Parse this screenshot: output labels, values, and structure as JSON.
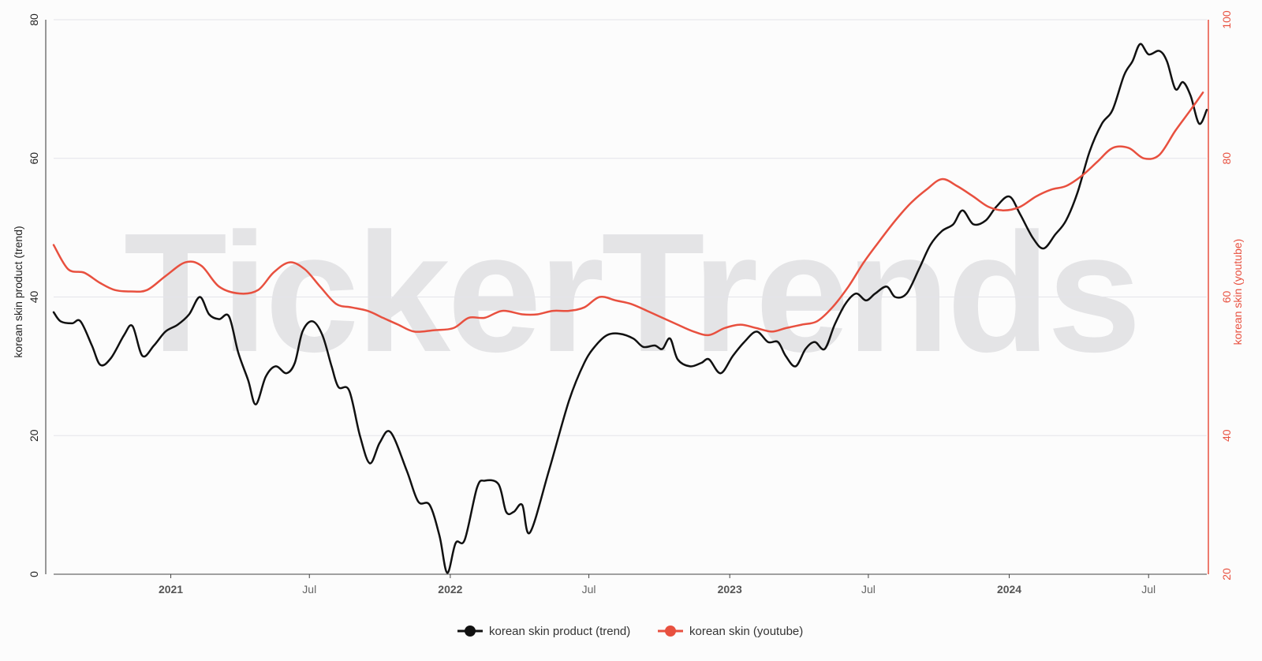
{
  "watermark": "TickerTrends",
  "colors": {
    "trend": "#111111",
    "youtube": "#e8503f",
    "grid": "#e4e4ea"
  },
  "chart_data": {
    "type": "line",
    "title": "",
    "x_type": "date",
    "xlim": [
      "2020-08-01",
      "2024-09-15"
    ],
    "x_ticks": [
      {
        "date": "2021-01-01",
        "label": "2021",
        "bold": true
      },
      {
        "date": "2021-07-01",
        "label": "Jul",
        "bold": false
      },
      {
        "date": "2022-01-01",
        "label": "2022",
        "bold": true
      },
      {
        "date": "2022-07-01",
        "label": "Jul",
        "bold": false
      },
      {
        "date": "2023-01-01",
        "label": "2023",
        "bold": true
      },
      {
        "date": "2023-07-01",
        "label": "Jul",
        "bold": false
      },
      {
        "date": "2024-01-01",
        "label": "2024",
        "bold": true
      },
      {
        "date": "2024-07-01",
        "label": "Jul",
        "bold": false
      }
    ],
    "y_left": {
      "label": "korean skin product  (trend)",
      "ylim": [
        0,
        80
      ],
      "ticks": [
        "0",
        "20",
        "40",
        "60",
        "80"
      ]
    },
    "y_right": {
      "label": "korean skin  (youtube)",
      "ylim": [
        20,
        100
      ],
      "ticks": [
        "20",
        "40",
        "60",
        "80",
        "100"
      ]
    },
    "grid": true,
    "legend_position": "bottom-center",
    "series": [
      {
        "name": "korean skin product  (trend)",
        "axis": "left",
        "color": "#111111",
        "points": [
          [
            "2020-08-01",
            37.8
          ],
          [
            "2020-08-10",
            36.5
          ],
          [
            "2020-08-25",
            36.2
          ],
          [
            "2020-09-05",
            36.5
          ],
          [
            "2020-09-20",
            33.0
          ],
          [
            "2020-10-01",
            30.2
          ],
          [
            "2020-10-15",
            31.2
          ],
          [
            "2020-11-01",
            34.5
          ],
          [
            "2020-11-12",
            35.8
          ],
          [
            "2020-11-25",
            31.5
          ],
          [
            "2020-12-10",
            33.0
          ],
          [
            "2020-12-25",
            35.0
          ],
          [
            "2021-01-10",
            36.0
          ],
          [
            "2021-01-25",
            37.5
          ],
          [
            "2021-02-08",
            40.0
          ],
          [
            "2021-02-20",
            37.5
          ],
          [
            "2021-03-05",
            36.8
          ],
          [
            "2021-03-18",
            37.2
          ],
          [
            "2021-03-30",
            32.0
          ],
          [
            "2021-04-12",
            28.0
          ],
          [
            "2021-04-22",
            24.5
          ],
          [
            "2021-05-05",
            28.5
          ],
          [
            "2021-05-18",
            30.0
          ],
          [
            "2021-06-01",
            29.0
          ],
          [
            "2021-06-12",
            30.5
          ],
          [
            "2021-06-22",
            35.0
          ],
          [
            "2021-07-05",
            36.5
          ],
          [
            "2021-07-18",
            34.5
          ],
          [
            "2021-07-30",
            30.0
          ],
          [
            "2021-08-08",
            27.0
          ],
          [
            "2021-08-22",
            26.5
          ],
          [
            "2021-09-05",
            20.0
          ],
          [
            "2021-09-18",
            16.0
          ],
          [
            "2021-10-01",
            19.0
          ],
          [
            "2021-10-15",
            20.5
          ],
          [
            "2021-11-05",
            15.0
          ],
          [
            "2021-11-20",
            10.5
          ],
          [
            "2021-12-05",
            10.0
          ],
          [
            "2021-12-18",
            5.5
          ],
          [
            "2021-12-28",
            0.2
          ],
          [
            "2022-01-08",
            4.5
          ],
          [
            "2022-01-20",
            5.0
          ],
          [
            "2022-02-05",
            12.5
          ],
          [
            "2022-02-15",
            13.5
          ],
          [
            "2022-03-05",
            13.0
          ],
          [
            "2022-03-15",
            9.0
          ],
          [
            "2022-03-25",
            9.0
          ],
          [
            "2022-04-05",
            10.0
          ],
          [
            "2022-04-15",
            6.0
          ],
          [
            "2022-05-10",
            15.0
          ],
          [
            "2022-06-05",
            25.0
          ],
          [
            "2022-06-25",
            30.5
          ],
          [
            "2022-07-10",
            33.0
          ],
          [
            "2022-07-25",
            34.5
          ],
          [
            "2022-08-10",
            34.7
          ],
          [
            "2022-08-28",
            34.0
          ],
          [
            "2022-09-10",
            32.8
          ],
          [
            "2022-09-25",
            33.0
          ],
          [
            "2022-10-05",
            32.5
          ],
          [
            "2022-10-15",
            34.0
          ],
          [
            "2022-10-25",
            31.0
          ],
          [
            "2022-11-10",
            30.0
          ],
          [
            "2022-11-25",
            30.5
          ],
          [
            "2022-12-05",
            31.0
          ],
          [
            "2022-12-20",
            29.0
          ],
          [
            "2023-01-05",
            31.5
          ],
          [
            "2023-01-20",
            33.5
          ],
          [
            "2023-02-05",
            35.0
          ],
          [
            "2023-02-20",
            33.5
          ],
          [
            "2023-03-05",
            33.5
          ],
          [
            "2023-03-15",
            31.5
          ],
          [
            "2023-03-28",
            30.0
          ],
          [
            "2023-04-10",
            32.5
          ],
          [
            "2023-04-22",
            33.5
          ],
          [
            "2023-05-05",
            32.5
          ],
          [
            "2023-05-18",
            36.0
          ],
          [
            "2023-06-01",
            39.0
          ],
          [
            "2023-06-15",
            40.5
          ],
          [
            "2023-06-28",
            39.5
          ],
          [
            "2023-07-10",
            40.5
          ],
          [
            "2023-07-25",
            41.5
          ],
          [
            "2023-08-05",
            40.0
          ],
          [
            "2023-08-20",
            40.5
          ],
          [
            "2023-09-05",
            44.0
          ],
          [
            "2023-09-20",
            47.5
          ],
          [
            "2023-10-05",
            49.5
          ],
          [
            "2023-10-20",
            50.5
          ],
          [
            "2023-11-01",
            52.5
          ],
          [
            "2023-11-15",
            50.5
          ],
          [
            "2023-12-01",
            51.0
          ],
          [
            "2023-12-15",
            53.0
          ],
          [
            "2024-01-01",
            54.5
          ],
          [
            "2024-01-15",
            52.0
          ],
          [
            "2024-02-01",
            48.5
          ],
          [
            "2024-02-15",
            47.0
          ],
          [
            "2024-03-01",
            49.0
          ],
          [
            "2024-03-15",
            51.0
          ],
          [
            "2024-03-30",
            55.0
          ],
          [
            "2024-04-15",
            61.0
          ],
          [
            "2024-05-01",
            65.0
          ],
          [
            "2024-05-15",
            67.0
          ],
          [
            "2024-05-30",
            72.0
          ],
          [
            "2024-06-10",
            74.0
          ],
          [
            "2024-06-20",
            76.5
          ],
          [
            "2024-07-01",
            75.0
          ],
          [
            "2024-07-15",
            75.5
          ],
          [
            "2024-07-25",
            74.0
          ],
          [
            "2024-08-05",
            70.0
          ],
          [
            "2024-08-15",
            71.0
          ],
          [
            "2024-08-25",
            69.0
          ],
          [
            "2024-09-05",
            65.0
          ],
          [
            "2024-09-15",
            67.0
          ]
        ]
      },
      {
        "name": "korean skin  (youtube)",
        "axis": "right",
        "color": "#e8503f",
        "points": [
          [
            "2020-08-01",
            67.5
          ],
          [
            "2020-08-20",
            64.0
          ],
          [
            "2020-09-10",
            63.5
          ],
          [
            "2020-10-01",
            62.0
          ],
          [
            "2020-10-20",
            61.0
          ],
          [
            "2020-11-10",
            60.8
          ],
          [
            "2020-12-01",
            61.0
          ],
          [
            "2020-12-25",
            63.0
          ],
          [
            "2021-01-20",
            65.0
          ],
          [
            "2021-02-10",
            64.5
          ],
          [
            "2021-03-05",
            61.5
          ],
          [
            "2021-04-01",
            60.5
          ],
          [
            "2021-04-25",
            61.0
          ],
          [
            "2021-05-15",
            63.5
          ],
          [
            "2021-06-05",
            65.0
          ],
          [
            "2021-06-25",
            64.0
          ],
          [
            "2021-07-15",
            61.5
          ],
          [
            "2021-08-05",
            59.0
          ],
          [
            "2021-08-25",
            58.5
          ],
          [
            "2021-09-15",
            58.0
          ],
          [
            "2021-10-05",
            57.0
          ],
          [
            "2021-10-25",
            56.0
          ],
          [
            "2021-11-15",
            55.0
          ],
          [
            "2021-12-10",
            55.2
          ],
          [
            "2022-01-05",
            55.5
          ],
          [
            "2022-01-25",
            57.0
          ],
          [
            "2022-02-15",
            57.0
          ],
          [
            "2022-03-10",
            58.0
          ],
          [
            "2022-04-05",
            57.5
          ],
          [
            "2022-04-25",
            57.5
          ],
          [
            "2022-05-15",
            58.0
          ],
          [
            "2022-06-05",
            58.0
          ],
          [
            "2022-06-25",
            58.5
          ],
          [
            "2022-07-15",
            60.0
          ],
          [
            "2022-08-05",
            59.5
          ],
          [
            "2022-08-25",
            59.0
          ],
          [
            "2022-09-15",
            58.0
          ],
          [
            "2022-10-05",
            57.0
          ],
          [
            "2022-10-25",
            56.0
          ],
          [
            "2022-11-15",
            55.0
          ],
          [
            "2022-12-05",
            54.5
          ],
          [
            "2022-12-25",
            55.5
          ],
          [
            "2023-01-15",
            56.0
          ],
          [
            "2023-02-05",
            55.5
          ],
          [
            "2023-02-25",
            55.0
          ],
          [
            "2023-03-15",
            55.5
          ],
          [
            "2023-04-05",
            56.0
          ],
          [
            "2023-04-25",
            56.5
          ],
          [
            "2023-05-15",
            58.5
          ],
          [
            "2023-06-05",
            61.5
          ],
          [
            "2023-06-25",
            65.0
          ],
          [
            "2023-07-15",
            68.0
          ],
          [
            "2023-08-05",
            71.0
          ],
          [
            "2023-08-25",
            73.5
          ],
          [
            "2023-09-15",
            75.5
          ],
          [
            "2023-10-05",
            77.0
          ],
          [
            "2023-10-25",
            76.0
          ],
          [
            "2023-11-15",
            74.5
          ],
          [
            "2023-12-05",
            73.0
          ],
          [
            "2023-12-25",
            72.5
          ],
          [
            "2024-01-15",
            73.0
          ],
          [
            "2024-02-05",
            74.5
          ],
          [
            "2024-02-25",
            75.5
          ],
          [
            "2024-03-15",
            76.0
          ],
          [
            "2024-04-05",
            77.5
          ],
          [
            "2024-04-25",
            79.5
          ],
          [
            "2024-05-15",
            81.5
          ],
          [
            "2024-06-05",
            81.5
          ],
          [
            "2024-06-25",
            80.0
          ],
          [
            "2024-07-15",
            80.5
          ],
          [
            "2024-08-05",
            84.0
          ],
          [
            "2024-08-25",
            87.0
          ],
          [
            "2024-09-10",
            89.5
          ]
        ]
      }
    ]
  }
}
